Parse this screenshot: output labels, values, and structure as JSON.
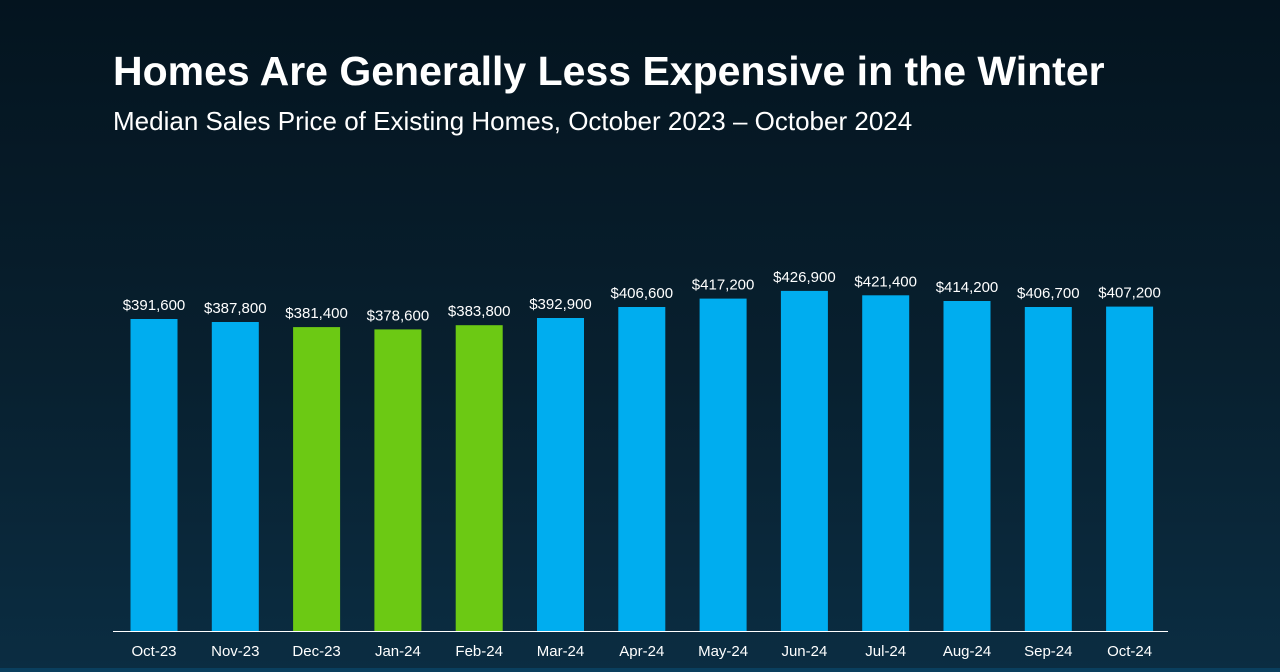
{
  "chart_data": {
    "type": "bar",
    "title": "Homes Are Generally Less Expensive in the Winter",
    "subtitle": "Median Sales Price of Existing Homes, October 2023 – October 2024",
    "categories": [
      "Oct-23",
      "Nov-23",
      "Dec-23",
      "Jan-24",
      "Feb-24",
      "Mar-24",
      "Apr-24",
      "May-24",
      "Jun-24",
      "Jul-24",
      "Aug-24",
      "Sep-24",
      "Oct-24"
    ],
    "values": [
      391600,
      387800,
      381400,
      378600,
      383800,
      392900,
      406600,
      417200,
      426900,
      421400,
      414200,
      406700,
      407200
    ],
    "value_labels": [
      "$391,600",
      "$387,800",
      "$381,400",
      "$378,600",
      "$383,800",
      "$392,900",
      "$406,600",
      "$417,200",
      "$426,900",
      "$421,400",
      "$414,200",
      "$406,700",
      "$407,200"
    ],
    "highlighted": [
      false,
      false,
      true,
      true,
      true,
      false,
      false,
      false,
      false,
      false,
      false,
      false,
      false
    ],
    "colors": {
      "bar": "#00adef",
      "highlight": "#6cc914",
      "axis": "#ffffff",
      "text": "#ffffff"
    },
    "xlabel": "",
    "ylabel": "",
    "grid": false,
    "legend": "none"
  }
}
